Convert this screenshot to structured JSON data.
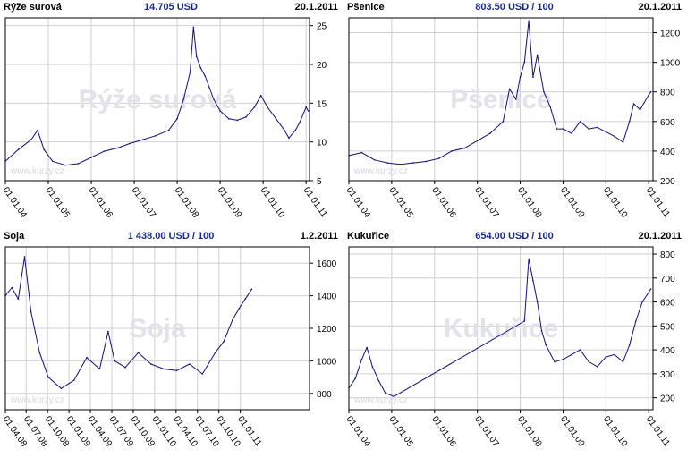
{
  "chart_data": [
    {
      "type": "line",
      "name": "Rýže surová",
      "price": "14.705 USD",
      "date": "20.1.2011",
      "watermark": "Rýže surová",
      "watermark_url": "www.kurzy.cz",
      "xlim": [
        2004.0,
        2011.08
      ],
      "ylim": [
        5,
        26
      ],
      "yticks": [
        5,
        10,
        15,
        20,
        25
      ],
      "xticks": [
        {
          "v": 2004,
          "label": "01.01.04"
        },
        {
          "v": 2005,
          "label": "01.01.05"
        },
        {
          "v": 2006,
          "label": "01.01.06"
        },
        {
          "v": 2007,
          "label": "01.01.07"
        },
        {
          "v": 2008,
          "label": "01.01.08"
        },
        {
          "v": 2009,
          "label": "01.01.09"
        },
        {
          "v": 2010,
          "label": "01.01.10"
        },
        {
          "v": 2011,
          "label": "01.01.11"
        }
      ],
      "x": [
        2004.0,
        2004.3,
        2004.6,
        2004.75,
        2004.9,
        2005.1,
        2005.4,
        2005.7,
        2006.0,
        2006.3,
        2006.6,
        2006.9,
        2007.2,
        2007.5,
        2007.8,
        2008.0,
        2008.15,
        2008.3,
        2008.38,
        2008.45,
        2008.55,
        2008.65,
        2008.75,
        2008.85,
        2009.0,
        2009.2,
        2009.4,
        2009.6,
        2009.8,
        2009.95,
        2010.1,
        2010.3,
        2010.5,
        2010.6,
        2010.75,
        2010.85,
        2011.0,
        2011.05
      ],
      "values": [
        7.5,
        9.0,
        10.3,
        11.5,
        9.0,
        7.5,
        7.0,
        7.2,
        8.0,
        8.8,
        9.2,
        9.8,
        10.3,
        10.8,
        11.5,
        13.0,
        15.5,
        19.0,
        24.8,
        21.0,
        19.5,
        18.5,
        17.0,
        15.5,
        14.0,
        13.0,
        12.8,
        13.2,
        14.5,
        16.0,
        14.5,
        13.0,
        11.5,
        10.5,
        11.5,
        12.5,
        14.5,
        14.0
      ]
    },
    {
      "type": "line",
      "name": "Pšenice",
      "price": "803.50 USD / 100",
      "date": "20.1.2011",
      "watermark": "Pšenice",
      "watermark_url": "www.kurzy.cz",
      "xlim": [
        2004.0,
        2011.1
      ],
      "ylim": [
        200,
        1300
      ],
      "yticks": [
        200,
        400,
        600,
        800,
        1000,
        1200
      ],
      "xticks": [
        {
          "v": 2004,
          "label": "01.01.04"
        },
        {
          "v": 2005,
          "label": "01.01.05"
        },
        {
          "v": 2006,
          "label": "01.01.06"
        },
        {
          "v": 2007,
          "label": "01.01.07"
        },
        {
          "v": 2008,
          "label": "01.01.08"
        },
        {
          "v": 2009,
          "label": "01.01.09"
        },
        {
          "v": 2010,
          "label": "01.01.10"
        },
        {
          "v": 2011,
          "label": "01.01.11"
        }
      ],
      "x": [
        2004.0,
        2004.3,
        2004.6,
        2004.9,
        2005.2,
        2005.5,
        2005.8,
        2006.1,
        2006.4,
        2006.7,
        2007.0,
        2007.3,
        2007.6,
        2007.75,
        2007.9,
        2008.0,
        2008.1,
        2008.2,
        2008.3,
        2008.4,
        2008.55,
        2008.7,
        2008.85,
        2009.0,
        2009.2,
        2009.4,
        2009.6,
        2009.8,
        2010.0,
        2010.2,
        2010.4,
        2010.55,
        2010.65,
        2010.8,
        2011.0,
        2011.05
      ],
      "values": [
        370,
        390,
        340,
        320,
        310,
        320,
        330,
        350,
        400,
        420,
        470,
        520,
        600,
        820,
        750,
        900,
        1000,
        1280,
        900,
        1050,
        800,
        700,
        550,
        550,
        520,
        600,
        550,
        560,
        530,
        500,
        460,
        600,
        720,
        680,
        780,
        800
      ]
    },
    {
      "type": "line",
      "name": "Soja",
      "price": "1 438.00 USD / 100",
      "date": "1.2.2011",
      "watermark": "Soja",
      "watermark_url": "www.kurzy.cz",
      "xlim": [
        2004.0,
        2011.1
      ],
      "ylim": [
        700,
        1700
      ],
      "yticks": [
        800,
        1000,
        1200,
        1400,
        1600
      ],
      "xticks": [
        {
          "v": 2004.0,
          "label": "01.04.08"
        },
        {
          "v": 2004.485,
          "label": "01.07.08"
        },
        {
          "v": 2004.985,
          "label": "01.10.08"
        },
        {
          "v": 2005.485,
          "label": "01.01.09"
        },
        {
          "v": 2005.985,
          "label": "01.04.09"
        },
        {
          "v": 2006.485,
          "label": "01.07.09"
        },
        {
          "v": 2006.985,
          "label": "01.10.09"
        },
        {
          "v": 2007.485,
          "label": "01.01.10"
        },
        {
          "v": 2007.985,
          "label": "01.04.10"
        },
        {
          "v": 2008.485,
          "label": "01.07.10"
        },
        {
          "v": 2008.985,
          "label": "01.10.10"
        },
        {
          "v": 2009.485,
          "label": "01.01.11"
        }
      ],
      "x": [
        2004.0,
        2004.15,
        2004.3,
        2004.45,
        2004.6,
        2004.8,
        2005.0,
        2005.3,
        2005.6,
        2005.9,
        2006.2,
        2006.4,
        2006.55,
        2006.8,
        2007.1,
        2007.4,
        2007.7,
        2008.0,
        2008.3,
        2008.6,
        2008.9,
        2009.1,
        2009.3,
        2009.45,
        2009.6,
        2009.75
      ],
      "values": [
        1400,
        1450,
        1380,
        1640,
        1300,
        1050,
        900,
        830,
        880,
        1020,
        950,
        1180,
        1000,
        960,
        1050,
        980,
        950,
        940,
        980,
        920,
        1050,
        1120,
        1250,
        1320,
        1380,
        1440
      ]
    },
    {
      "type": "line",
      "name": "Kukuřice",
      "price": "654.00 USD / 100",
      "date": "20.1.2011",
      "watermark": "Kukuřice",
      "watermark_url": "www.kurzy.cz",
      "xlim": [
        2004.0,
        2011.1
      ],
      "ylim": [
        150,
        830
      ],
      "yticks": [
        200,
        300,
        400,
        500,
        600,
        700,
        800
      ],
      "xticks": [
        {
          "v": 2004,
          "label": "01.01.04"
        },
        {
          "v": 2005,
          "label": "01.01.05"
        },
        {
          "v": 2006,
          "label": "01.01.06"
        },
        {
          "v": 2007,
          "label": "01.01.07"
        },
        {
          "v": 2008,
          "label": "01.01.08"
        },
        {
          "v": 2009,
          "label": "01.01.09"
        },
        {
          "v": 2010,
          "label": "01.01.10"
        },
        {
          "v": 2011,
          "label": "01.01.11"
        }
      ],
      "x": [
        2004.0,
        2004.15,
        2004.3,
        2004.42,
        2004.55,
        2004.7,
        2004.85,
        2005.05,
        2008.1,
        2008.2,
        2008.3,
        2008.4,
        2008.5,
        2008.6,
        2008.8,
        2009.0,
        2009.2,
        2009.4,
        2009.6,
        2009.8,
        2010.0,
        2010.2,
        2010.4,
        2010.55,
        2010.7,
        2010.85,
        2011.05
      ],
      "values": [
        240,
        280,
        360,
        410,
        330,
        270,
        220,
        205,
        520,
        780,
        690,
        600,
        480,
        420,
        350,
        360,
        380,
        400,
        350,
        330,
        370,
        380,
        350,
        420,
        520,
        600,
        654
      ]
    }
  ]
}
